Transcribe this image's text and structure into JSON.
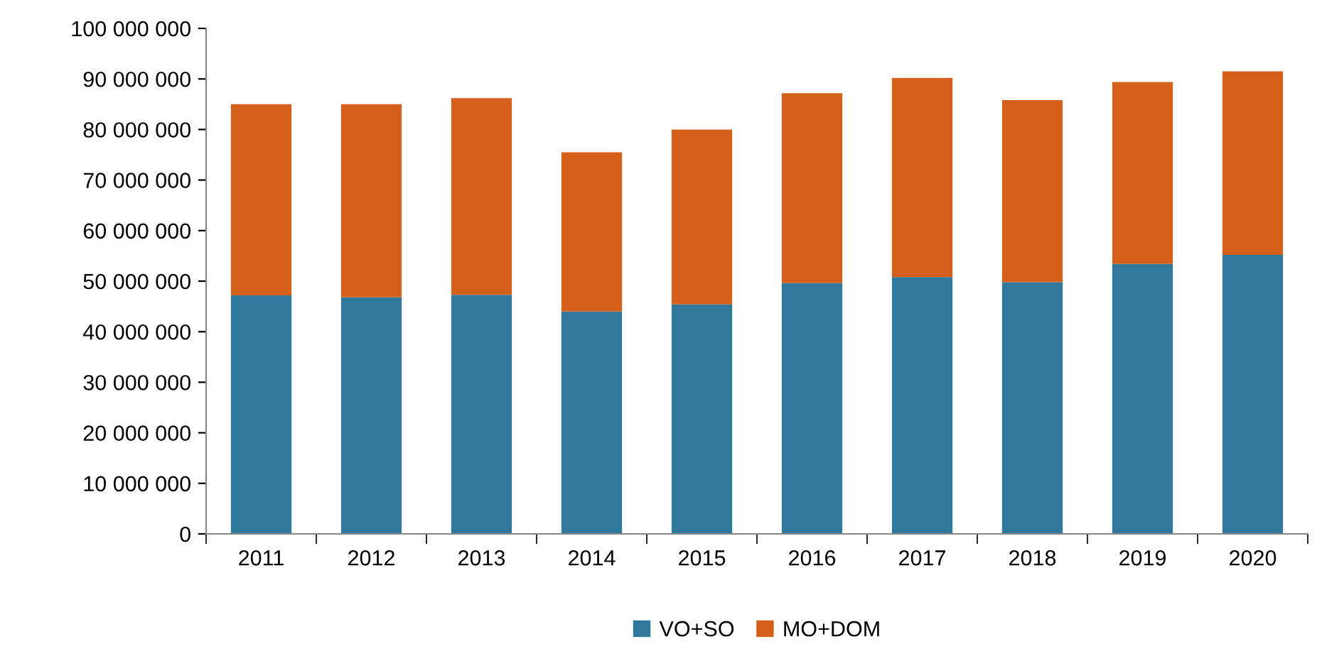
{
  "chart_data": {
    "type": "bar",
    "stacked": true,
    "categories": [
      "2011",
      "2012",
      "2013",
      "2014",
      "2015",
      "2016",
      "2017",
      "2018",
      "2019",
      "2020"
    ],
    "series": [
      {
        "name": "VO+SO",
        "color": "#31799c",
        "values": [
          47200000,
          46800000,
          47300000,
          44000000,
          45400000,
          49600000,
          50800000,
          49800000,
          53400000,
          55200000
        ]
      },
      {
        "name": "MO+DOM",
        "color": "#d4601c",
        "values": [
          37800000,
          38200000,
          38900000,
          31500000,
          34600000,
          37600000,
          39400000,
          36000000,
          36000000,
          36300000
        ]
      }
    ],
    "ylim": [
      0,
      100000000
    ],
    "yticks": [
      {
        "value": 0,
        "label": "0"
      },
      {
        "value": 10000000,
        "label": "10 000 000"
      },
      {
        "value": 20000000,
        "label": "20 000 000"
      },
      {
        "value": 30000000,
        "label": "30 000 000"
      },
      {
        "value": 40000000,
        "label": "40 000 000"
      },
      {
        "value": 50000000,
        "label": "50 000 000"
      },
      {
        "value": 60000000,
        "label": "60 000 000"
      },
      {
        "value": 70000000,
        "label": "70 000 000"
      },
      {
        "value": 80000000,
        "label": "80 000 000"
      },
      {
        "value": 90000000,
        "label": "90 000 000"
      },
      {
        "value": 100000000,
        "label": "100 000 000"
      }
    ],
    "grid": false,
    "legend": "bottom"
  }
}
